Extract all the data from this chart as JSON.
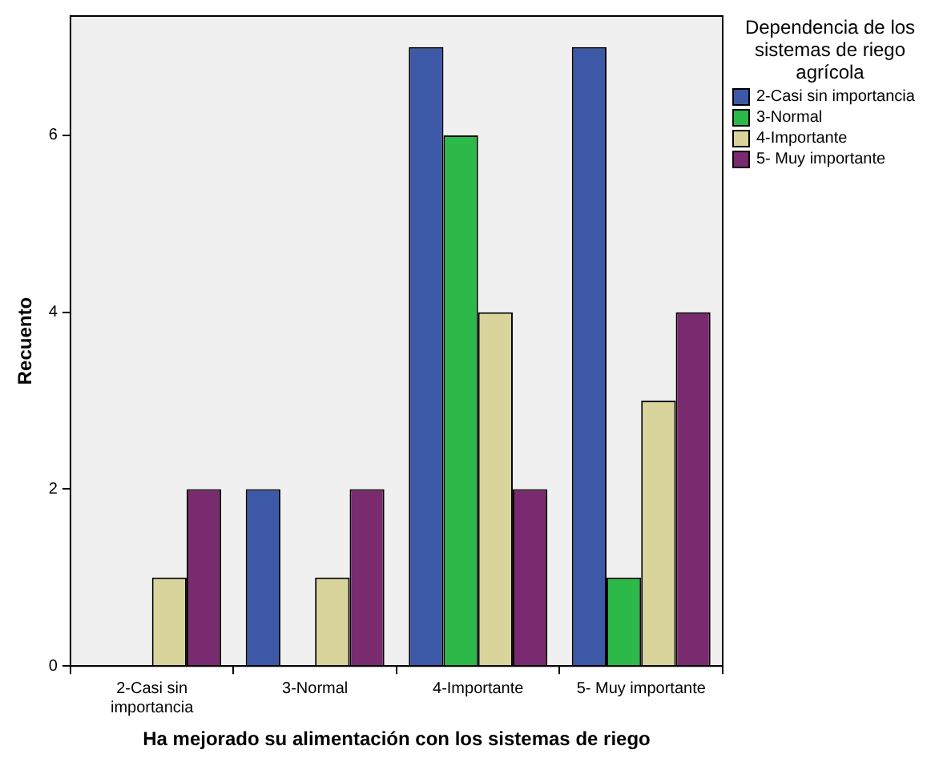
{
  "chart_data": {
    "type": "bar",
    "xlabel": "Ha mejorado su alimentación con los sistemas de riego",
    "ylabel": "Recuento",
    "legend_title": "Dependencia de los sistemas de riego agrícola",
    "categories": [
      "2-Casi sin importancia",
      "3-Normal",
      "4-Importante",
      "5- Muy importante"
    ],
    "series": [
      {
        "name": "2-Casi sin importancia",
        "color": "#3e58a8",
        "values": [
          0,
          2,
          7,
          7
        ]
      },
      {
        "name": "3-Normal",
        "color": "#2db84a",
        "values": [
          0,
          0,
          6,
          1
        ]
      },
      {
        "name": "4-Importante",
        "color": "#d8d49c",
        "values": [
          1,
          1,
          4,
          3
        ]
      },
      {
        "name": "5- Muy importante",
        "color": "#7a2a6e",
        "values": [
          2,
          2,
          2,
          4
        ]
      }
    ],
    "ylim": [
      0,
      7.35
    ],
    "yticks": [
      0,
      2,
      4,
      6
    ],
    "grid": false,
    "legend": "top right"
  }
}
